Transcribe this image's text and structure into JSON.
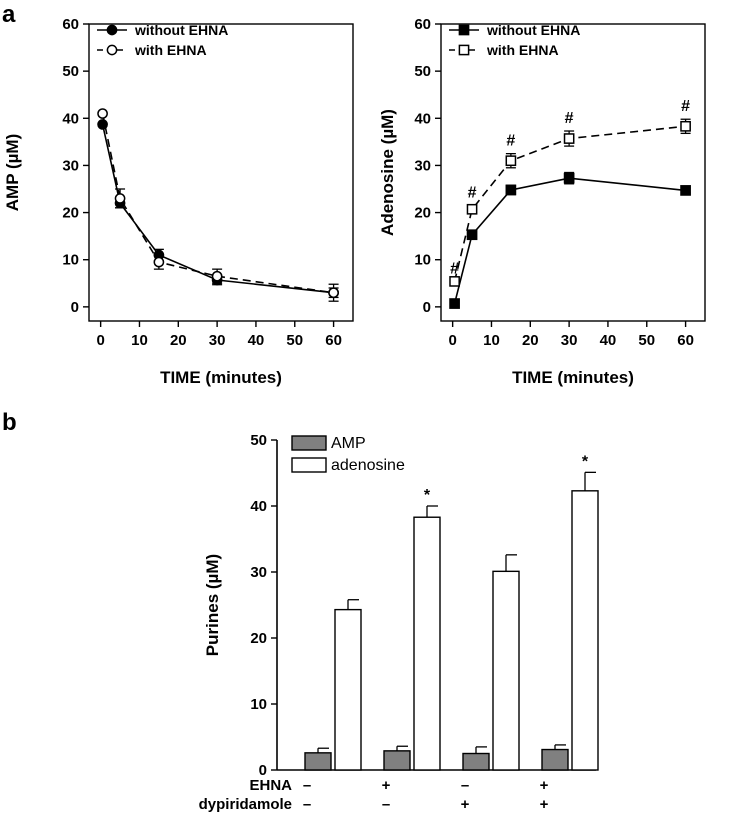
{
  "panel_labels": {
    "a": "a",
    "b": "b"
  },
  "chart_data": [
    {
      "id": "amp",
      "type": "line",
      "ylabel": "AMP (µM)",
      "xlabel": "TIME (minutes)",
      "xlim": [
        -3,
        65
      ],
      "ylim": [
        -3,
        60
      ],
      "xticks": [
        0,
        10,
        20,
        30,
        40,
        50,
        60
      ],
      "yticks": [
        0,
        10,
        20,
        30,
        40,
        50,
        60
      ],
      "legend_position": "top-left",
      "series": [
        {
          "name": "without EHNA",
          "marker": "filled-circle",
          "dash": "solid",
          "x": [
            0.5,
            5,
            15,
            30,
            60
          ],
          "y": [
            38.7,
            22.0,
            11.0,
            5.7,
            3.0
          ],
          "err": [
            0,
            1.0,
            1.2,
            1.0,
            1.8
          ]
        },
        {
          "name": "with EHNA",
          "marker": "open-circle",
          "dash": "dashed",
          "x": [
            0.5,
            5,
            15,
            30,
            60
          ],
          "y": [
            41.0,
            23.0,
            9.5,
            6.5,
            3.0
          ],
          "err": [
            0,
            2.0,
            1.5,
            1.5,
            1.0
          ]
        }
      ]
    },
    {
      "id": "adenosine",
      "type": "line",
      "ylabel": "Adenosine (µM)",
      "xlabel": "TIME (minutes)",
      "xlim": [
        -3,
        65
      ],
      "ylim": [
        -3,
        60
      ],
      "xticks": [
        0,
        10,
        20,
        30,
        40,
        50,
        60
      ],
      "yticks": [
        0,
        10,
        20,
        30,
        40,
        50,
        60
      ],
      "legend_position": "top-left",
      "annotation_symbol": "#",
      "series": [
        {
          "name": "without EHNA",
          "marker": "filled-square",
          "dash": "solid",
          "x": [
            0.5,
            5,
            15,
            30,
            60
          ],
          "y": [
            0.7,
            15.3,
            24.8,
            27.3,
            24.7
          ],
          "err": [
            0,
            0.8,
            1.0,
            1.2,
            0.5
          ]
        },
        {
          "name": "with EHNA",
          "marker": "open-square",
          "dash": "dashed",
          "x": [
            0.5,
            5,
            15,
            30,
            60
          ],
          "y": [
            5.4,
            20.7,
            31.0,
            35.7,
            38.3
          ],
          "err": [
            0,
            0.8,
            1.5,
            1.6,
            1.5
          ],
          "annotated": [
            true,
            true,
            true,
            true,
            true
          ]
        }
      ]
    },
    {
      "id": "purines",
      "type": "bar",
      "ylabel": "Purines (µM)",
      "ylim": [
        0,
        50
      ],
      "yticks": [
        0,
        10,
        20,
        30,
        40,
        50
      ],
      "legend_position": "top-left",
      "annotation_symbol": "*",
      "series": [
        {
          "name": "AMP",
          "color": "#808080",
          "values": [
            2.6,
            2.9,
            2.5,
            3.1
          ],
          "err": [
            0.7,
            0.7,
            1.0,
            0.7
          ]
        },
        {
          "name": "adenosine",
          "color": "#ffffff",
          "values": [
            24.3,
            38.3,
            30.1,
            42.3
          ],
          "err": [
            1.5,
            1.7,
            2.5,
            2.8
          ],
          "annotated": [
            false,
            true,
            false,
            true
          ]
        }
      ],
      "conditions": [
        {
          "label": "EHNA",
          "signs": [
            "–",
            "+",
            "–",
            "+"
          ]
        },
        {
          "label": "dypiridamole",
          "signs": [
            "–",
            "–",
            "+",
            "+"
          ]
        }
      ]
    }
  ]
}
